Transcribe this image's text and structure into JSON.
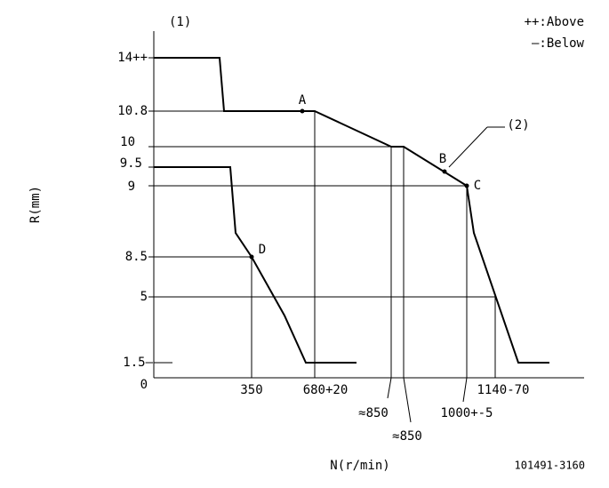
{
  "header": {
    "marker_1": "(1)",
    "legend_above": "++:Above",
    "legend_below": "—:Below"
  },
  "y_axis": {
    "title": "R(mm)",
    "labels": [
      "14++",
      "10.8",
      "10",
      "9.5",
      "9",
      "8.5",
      "5",
      "1.5—",
      "0"
    ]
  },
  "x_axis": {
    "title": "N(r/min)",
    "labels": [
      "350",
      "680+20",
      "≈850",
      "≈850",
      "1000+-5",
      "1140-70"
    ]
  },
  "points": {
    "a": "A",
    "b": "B",
    "c": "C",
    "d": "D",
    "marker_2": "(2)"
  },
  "footer": {
    "code": "101491-3160"
  }
}
